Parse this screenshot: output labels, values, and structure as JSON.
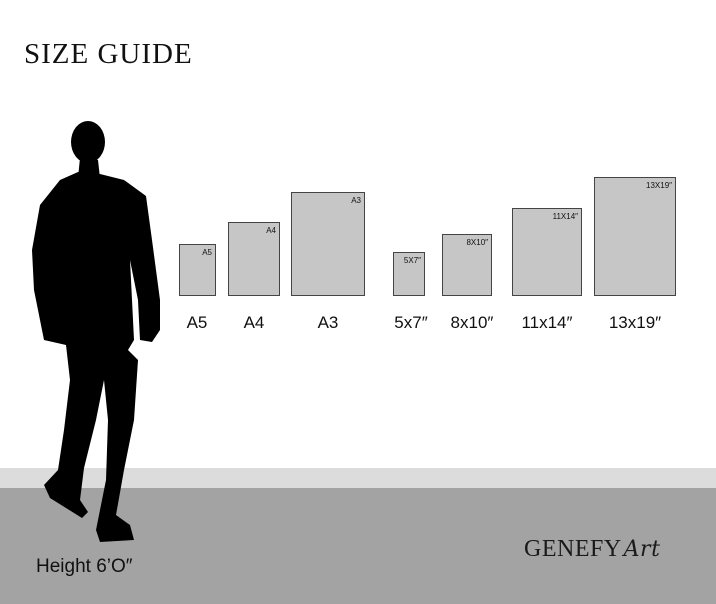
{
  "title": "SIZE GUIDE",
  "frames": [
    {
      "inner": "A5",
      "label": "A5"
    },
    {
      "inner": "A4",
      "label": "A4"
    },
    {
      "inner": "A3",
      "label": "A3"
    },
    {
      "inner": "5X7″",
      "label": "5x7″"
    },
    {
      "inner": "8X10″",
      "label": "8x10″"
    },
    {
      "inner": "11X14″",
      "label": "11x14″"
    },
    {
      "inner": "13X19″",
      "label": "13x19″"
    }
  ],
  "height_label": "Height 6’O″",
  "logo": {
    "main": "GENEFY",
    "script": "Art"
  },
  "colors": {
    "frame_fill": "#c6c6c6",
    "floor": "#a3a3a3",
    "wall_strip": "#dcdcdc",
    "silhouette": "#000000"
  }
}
